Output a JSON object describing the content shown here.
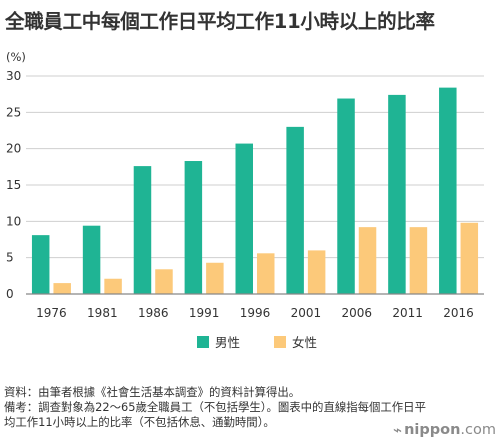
{
  "title": "全職員工中每個工作日平均工作11小時以上的比率",
  "unit_label": "(%)",
  "legend": {
    "male": "男性",
    "female": "女性"
  },
  "colors": {
    "male": "#1fb494",
    "female": "#fcc97a",
    "axis": "#888888",
    "grid": "#cfcfcf",
    "text": "#333333"
  },
  "notes": {
    "source": "資料：由筆者根據《社會生活基本調查》的資料計算得出。",
    "remark_line1": "備考：調查對象為22～65歲全職員工（不包括學生）。圖表中的直線指每個工作日平",
    "remark_line2": "均工作11小時以上的比率（不包括休息、通勤時間）。"
  },
  "brand": {
    "icon": "sig-mark-icon",
    "name": "nippon",
    "suffix": ".com"
  },
  "chart_data": {
    "type": "bar",
    "title": "全職員工中每個工作日平均工作11小時以上的比率",
    "xlabel": "",
    "ylabel": "(%)",
    "categories": [
      "1976",
      "1981",
      "1986",
      "1991",
      "1996",
      "2001",
      "2006",
      "2011",
      "2016"
    ],
    "series": [
      {
        "name": "男性",
        "values": [
          8.1,
          9.4,
          17.6,
          18.3,
          20.7,
          23.0,
          26.9,
          27.4,
          28.4
        ]
      },
      {
        "name": "女性",
        "values": [
          1.5,
          2.1,
          3.4,
          4.3,
          5.6,
          6.0,
          9.2,
          9.2,
          9.8
        ]
      }
    ],
    "ylim": [
      0,
      30
    ],
    "yticks": [
      0,
      5,
      10,
      15,
      20,
      25,
      30
    ],
    "grid": true,
    "legend_position": "bottom-center"
  }
}
